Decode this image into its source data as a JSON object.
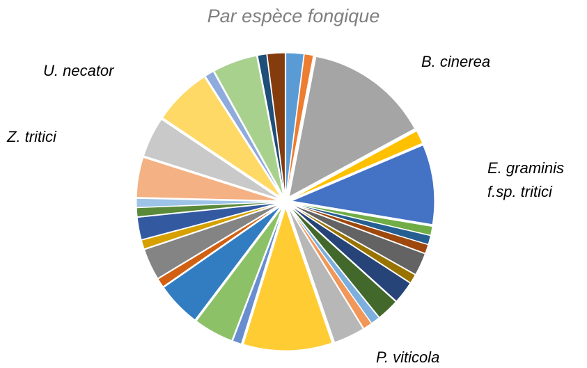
{
  "chart_data": {
    "type": "pie",
    "title": "Par espèce fongique",
    "categories": [
      null,
      null,
      "B. cinerea",
      null,
      "E. graminis f.sp. tritici",
      null,
      null,
      null,
      null,
      null,
      null,
      null,
      null,
      null,
      null,
      "P. viticola",
      null,
      null,
      null,
      null,
      null,
      null,
      null,
      null,
      null,
      null,
      "Z. tritici",
      "U. necator",
      null,
      null,
      null,
      null
    ],
    "values": [
      2,
      1,
      14,
      1.5,
      9,
      1,
      1,
      1,
      2.5,
      1,
      2.5,
      2.5,
      1,
      1,
      3.5,
      10,
      1,
      4.5,
      5,
      1,
      3.5,
      1,
      2.5,
      1,
      1,
      4.5,
      4.5,
      6.5,
      1,
      5,
      1,
      2
    ],
    "colors": [
      "#5b9bd5",
      "#ed7d31",
      "#a5a5a5",
      "#ffc000",
      "#4472c4",
      "#70ad47",
      "#255e91",
      "#9e480e",
      "#636363",
      "#997300",
      "#264478",
      "#43682b",
      "#7cafdd",
      "#f1975a",
      "#b7b7b7",
      "#ffcd33",
      "#698ed0",
      "#8cc168",
      "#327dc2",
      "#d26012",
      "#848484",
      "#d5a000",
      "#335aa1",
      "#5a8a39",
      "#9dc3e6",
      "#f4b183",
      "#c9c9c9",
      "#ffd966",
      "#8faadc",
      "#a9d18e",
      "#1f4e79",
      "#843c0c"
    ]
  }
}
